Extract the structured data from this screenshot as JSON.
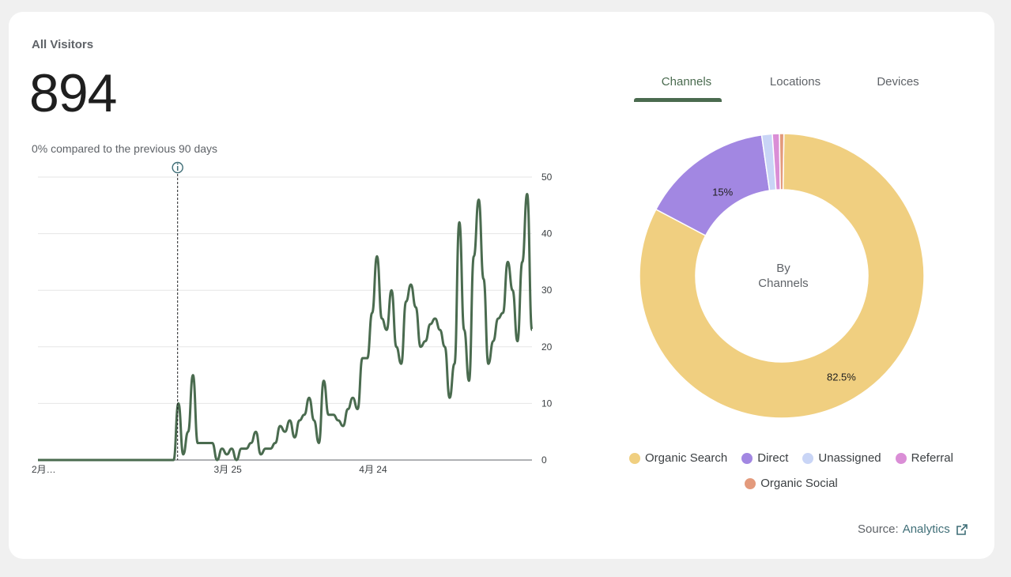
{
  "card": {
    "title": "All Visitors",
    "total": "894",
    "comparison": "0% compared to the previous 90 days"
  },
  "tabs": [
    {
      "label": "Channels",
      "active": true
    },
    {
      "label": "Locations",
      "active": false
    },
    {
      "label": "Devices",
      "active": false
    }
  ],
  "donut": {
    "center_line1": "By",
    "center_line2": "Channels"
  },
  "legend": [
    {
      "label": "Organic Search",
      "color": "#f0cf80"
    },
    {
      "label": "Direct",
      "color": "#a287e2"
    },
    {
      "label": "Unassigned",
      "color": "#c9d5f6"
    },
    {
      "label": "Referral",
      "color": "#da8ed6"
    },
    {
      "label": "Organic Social",
      "color": "#e39a7c"
    }
  ],
  "source": {
    "prefix": "Source:",
    "link": "Analytics"
  },
  "chart_data": [
    {
      "type": "line",
      "x_tick_labels": [
        "2月…",
        "3月 25",
        "4月 24"
      ],
      "y_ticks": [
        0,
        10,
        20,
        30,
        40,
        50
      ],
      "ylim": [
        0,
        50
      ],
      "grid": true,
      "annotation": "info-marker",
      "series": [
        {
          "color": "#4a6b4f",
          "values": [
            0,
            0,
            0,
            0,
            0,
            0,
            0,
            0,
            0,
            0,
            0,
            0,
            0,
            0,
            0,
            0,
            0,
            0,
            0,
            0,
            0,
            0,
            0,
            0,
            0,
            0,
            0,
            0,
            0,
            10,
            1,
            5,
            15,
            3,
            3,
            3,
            3,
            0,
            2,
            1,
            2,
            0,
            2,
            2,
            3,
            5,
            1,
            2,
            2,
            3,
            6,
            5,
            7,
            4,
            7,
            8,
            11,
            7,
            3,
            14,
            8,
            8,
            7,
            6,
            9,
            11,
            9,
            18,
            18,
            26,
            36,
            25,
            23,
            30,
            20,
            17,
            28,
            31,
            27,
            20,
            21,
            24,
            25,
            23,
            20,
            11,
            17,
            42,
            23,
            14,
            36,
            46,
            32,
            17,
            21,
            25,
            26,
            35,
            30,
            21,
            35,
            47,
            23
          ]
        }
      ]
    },
    {
      "type": "pie",
      "title": "By Channels",
      "series": [
        {
          "labels": [
            "Organic Search",
            "Direct",
            "Unassigned",
            "Referral",
            "Organic Social"
          ],
          "values": [
            82.5,
            15,
            1.2,
            0.8,
            0.5
          ],
          "data_labels": [
            "82.5%",
            "15%",
            "",
            "",
            ""
          ]
        }
      ]
    }
  ]
}
